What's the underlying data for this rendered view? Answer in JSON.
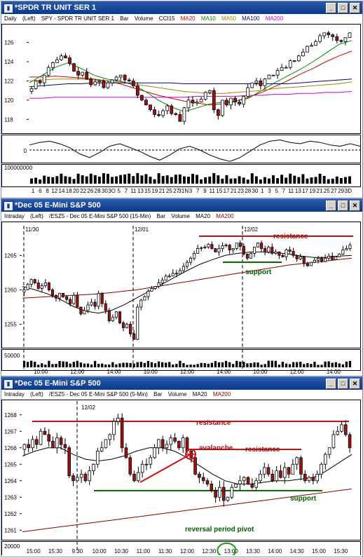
{
  "windows": [
    {
      "title": "*SPDR TR UNIT SER 1",
      "header": {
        "period": "Daily",
        "axis": "(Left)",
        "symbol": "SPY - SPDR TR UNIT SER 1",
        "type": "Bar",
        "volume": "Volume",
        "cci": "CCI15",
        "ma_labels": [
          "MA20",
          "MA10",
          "MA50",
          "MA100",
          "MA200"
        ]
      },
      "ma_colors": [
        "#cc0000",
        "#008800",
        "#a08800",
        "#000080",
        "#cc00cc"
      ],
      "y_ticks": [
        "126",
        "124",
        "122",
        "120",
        "118"
      ],
      "osc_tick": "0",
      "vol_tick": "100000000",
      "x_ticks": [
        "1",
        "6",
        "8",
        "12",
        "14",
        "18",
        "20",
        "22",
        "26",
        "28",
        "30",
        "3O",
        "5",
        "7",
        "11",
        "13",
        "15",
        "19",
        "21",
        "25",
        "27",
        "31N",
        "3",
        "7",
        "9",
        "11",
        "15",
        "17",
        "21",
        "23",
        "28",
        "30",
        "1",
        "3",
        "5",
        "7",
        "11",
        "13",
        "17",
        "19",
        "21",
        "25",
        "27",
        "29",
        "3D"
      ]
    },
    {
      "title": "*Dec 05  E-Mini S&P 500",
      "header": {
        "period": "Intraday",
        "axis": "(Left)",
        "symbol": "/ESZ5 - Dec 05  E-Mini S&P 500 (15-Min)",
        "type": "Bar",
        "volume": "Volume",
        "ma_labels": [
          "MA20",
          "MA200"
        ]
      },
      "ma_colors": [
        "#000000",
        "#880000"
      ],
      "y_ticks": [
        "1265",
        "1260",
        "1255"
      ],
      "vol_tick": "50000",
      "dates": [
        "11/30",
        "12/01",
        "12/02"
      ],
      "x_ticks": [
        "10:00",
        "12:00",
        "14:00",
        "10:00",
        "12:00",
        "14:00",
        "10:00",
        "12:00",
        "14:00"
      ],
      "annotations": {
        "resistance": "resistance",
        "support": "support"
      }
    },
    {
      "title": "*Dec 05  E-Mini S&P 500",
      "header": {
        "period": "Intraday",
        "axis": "(Left)",
        "symbol": "/ESZ5 - Dec 05  E-Mini S&P 500 (5-Min)",
        "type": "Bar",
        "volume": "Volume",
        "ma_labels": [
          "MA20",
          "MA200"
        ]
      },
      "ma_colors": [
        "#000000",
        "#880000"
      ],
      "y_ticks": [
        "1268",
        "1267",
        "1266",
        "1265",
        "1264",
        "1263",
        "1262",
        "1261"
      ],
      "vol_tick": "20000",
      "dates": [
        "12/02"
      ],
      "x_ticks": [
        "15:00",
        "15:30",
        "9:30",
        "10:00",
        "10:30",
        "11:00",
        "11:30",
        "12:00",
        "12:30",
        "13:00",
        "13:30",
        "14:00",
        "14:30",
        "15:00",
        "15:30"
      ],
      "annotations": {
        "resistance_top": "resistance",
        "avalanche": "avalanche",
        "resistance_mid": "resistance",
        "support": "support",
        "pivot": "reversal period pivot"
      }
    }
  ],
  "chart_data": [
    {
      "type": "candlestick",
      "title": "SPY - SPDR TR UNIT SER 1",
      "x_tick_labels": [
        "1",
        "6",
        "8",
        "12",
        "14",
        "18",
        "20",
        "22",
        "26",
        "28",
        "30",
        "3O",
        "5",
        "7",
        "11",
        "13",
        "15",
        "19",
        "21",
        "25",
        "27",
        "31N",
        "3",
        "7",
        "9",
        "11",
        "15",
        "17",
        "21",
        "23",
        "28",
        "30",
        "1",
        "3",
        "5",
        "7",
        "11",
        "13",
        "17",
        "19",
        "21",
        "25",
        "27",
        "29",
        "3D"
      ],
      "ylim": [
        117,
        127.5
      ],
      "closes": [
        121.2,
        122.0,
        121.8,
        122.6,
        123.4,
        123.9,
        124.2,
        124.6,
        124.4,
        123.8,
        123.0,
        122.6,
        122.9,
        122.2,
        121.6,
        121.9,
        122.0,
        121.3,
        121.8,
        122.1,
        122.4,
        122.6,
        122.1,
        122.0,
        121.5,
        120.5,
        120.0,
        119.5,
        119.0,
        118.5,
        118.4,
        118.9,
        119.4,
        118.6,
        118.5,
        117.8,
        119.2,
        120.0,
        119.7,
        119.8,
        120.1,
        120.8,
        121.0,
        119.0,
        118.4,
        120.0,
        119.5,
        120.2,
        119.8,
        119.6,
        120.4,
        121.3,
        121.8,
        122.0,
        121.5,
        122.2,
        122.6,
        122.6,
        123.1,
        123.4,
        123.4,
        124.1,
        124.1,
        124.6,
        125.0,
        125.6,
        125.7,
        126.1,
        126.7,
        127.0,
        126.8,
        126.6,
        126.2,
        126.1,
        126.5,
        127.0
      ],
      "series": [
        {
          "name": "MA20",
          "values": [
            122.4,
            122.4,
            122.5,
            122.4,
            122.3,
            122.2,
            122.0,
            121.7,
            121.3,
            120.9,
            120.5,
            120.2,
            119.9,
            119.7,
            119.5,
            119.6,
            119.9,
            120.3,
            120.8,
            121.4,
            122.0,
            122.7,
            123.3,
            124.0,
            124.6,
            125.1
          ]
        },
        {
          "name": "MA10",
          "values": [
            121.8,
            122.6,
            123.4,
            123.9,
            123.3,
            122.6,
            122.2,
            122.0,
            121.6,
            120.9,
            120.0,
            119.3,
            118.8,
            119.2,
            119.6,
            119.8,
            119.9,
            120.2,
            121.0,
            121.8,
            122.5,
            123.2,
            124.0,
            124.9,
            125.8,
            126.2
          ]
        },
        {
          "name": "MA50",
          "values": [
            122.0,
            122.1,
            122.2,
            122.2,
            122.2,
            122.1,
            122.0,
            121.9,
            121.7,
            121.5,
            121.3,
            121.1,
            120.9,
            120.8,
            120.7,
            120.7,
            120.8,
            120.9,
            121.0,
            121.2,
            121.3,
            121.4,
            121.5,
            121.6,
            121.7,
            121.9
          ]
        },
        {
          "name": "MA100",
          "values": [
            121.4,
            121.5,
            121.6,
            121.7,
            121.7,
            121.8,
            121.8,
            121.8,
            121.8,
            121.8,
            121.8,
            121.8,
            121.7,
            121.7,
            121.7,
            121.7,
            121.7,
            121.7,
            121.7,
            121.7,
            121.7,
            121.8,
            121.9,
            122.0,
            122.1,
            122.2
          ]
        },
        {
          "name": "MA200",
          "values": [
            120.2,
            120.2,
            120.3,
            120.3,
            120.3,
            120.3,
            120.3,
            120.3,
            120.3,
            120.3,
            120.3,
            120.3,
            120.3,
            120.4,
            120.4,
            120.4,
            120.4,
            120.5,
            120.5,
            120.6,
            120.6,
            120.7,
            120.7,
            120.8,
            120.8,
            120.9
          ]
        }
      ],
      "cci_tick": "0",
      "volume_tick": "100000000"
    },
    {
      "type": "candlestick",
      "title": "/ESZ5 - Dec 05  E-Mini S&P 500 (15-Min)",
      "ylim": [
        1252,
        1268.5
      ],
      "closes": [
        1260.0,
        1260.8,
        1261.5,
        1261.0,
        1260.2,
        1260.6,
        1261.0,
        1260.0,
        1259.2,
        1258.8,
        1259.5,
        1259.0,
        1258.6,
        1258.0,
        1259.2,
        1257.5,
        1256.5,
        1257.0,
        1257.8,
        1258.2,
        1257.6,
        1259.5,
        1258.0,
        1257.0,
        1255.5,
        1256.0,
        1256.8,
        1255.2,
        1254.5,
        1255.0,
        1253.6,
        1252.8,
        1257.5,
        1258.5,
        1259.0,
        1259.8,
        1260.2,
        1260.5,
        1261.0,
        1261.4,
        1262.0,
        1262.0,
        1262.4,
        1262.3,
        1262.8,
        1263.4,
        1264.0,
        1264.6,
        1265.3,
        1266.0,
        1266.1,
        1266.2,
        1266.6,
        1266.0,
        1265.5,
        1266.0,
        1266.4,
        1266.5,
        1265.8,
        1266.0,
        1266.8,
        1266.3,
        1265.2,
        1264.6,
        1265.3,
        1266.2,
        1266.8,
        1266.0,
        1265.5,
        1266.2,
        1265.3,
        1265.5,
        1265.0,
        1264.8,
        1265.8,
        1265.6,
        1265.0,
        1264.5,
        1264.8,
        1263.8,
        1263.5,
        1264.0,
        1264.3,
        1264.6,
        1264.1,
        1264.6,
        1264.9,
        1264.4,
        1264.8,
        1265.2,
        1265.8,
        1266.0,
        1266.5
      ],
      "series": [
        {
          "name": "MA20",
          "values": [
            1260.5,
            1260.0,
            1259.4,
            1258.6,
            1257.6,
            1256.9,
            1256.6,
            1257.0,
            1257.8,
            1258.8,
            1259.8,
            1260.8,
            1261.8,
            1262.8,
            1263.7,
            1264.4,
            1265.0,
            1265.3,
            1265.5,
            1265.5,
            1265.4,
            1265.2,
            1264.9,
            1264.7,
            1264.7,
            1264.9,
            1265.0
          ]
        },
        {
          "name": "MA200",
          "values": [
            1258.8,
            1258.9,
            1259.0,
            1259.1,
            1259.2,
            1259.3,
            1259.4,
            1259.6,
            1259.8,
            1260.0,
            1260.3,
            1260.6,
            1260.9,
            1261.2,
            1261.5,
            1261.8,
            1262.1,
            1262.4,
            1262.7,
            1263.0,
            1263.3,
            1263.6,
            1263.8,
            1264.0,
            1264.2,
            1264.4,
            1264.6
          ]
        }
      ],
      "levels": {
        "resistance": 1267.8,
        "support": 1264.0
      },
      "volume_tick": "50000"
    },
    {
      "type": "candlestick",
      "title": "/ESZ5 - Dec 05  E-Mini S&P 500 (5-Min)",
      "ylim": [
        1260.5,
        1268.5
      ],
      "closes": [
        1266.2,
        1266.0,
        1266.5,
        1266.2,
        1267.0,
        1266.8,
        1266.4,
        1266.0,
        1266.6,
        1266.2,
        1266.0,
        1264.3,
        1264.0,
        1264.2,
        1264.4,
        1264.0,
        1264.6,
        1265.0,
        1265.8,
        1266.0,
        1266.5,
        1266.8,
        1267.6,
        1267.8,
        1266.0,
        1265.4,
        1264.4,
        1264.0,
        1264.5,
        1265.0,
        1265.0,
        1265.4,
        1266.0,
        1266.5,
        1266.0,
        1266.2,
        1266.6,
        1266.4,
        1266.0,
        1266.6,
        1265.8,
        1265.4,
        1264.4,
        1264.2,
        1264.0,
        1263.8,
        1263.4,
        1263.0,
        1263.6,
        1262.8,
        1263.0,
        1263.6,
        1263.8,
        1264.0,
        1264.2,
        1263.8,
        1263.6,
        1264.0,
        1264.4,
        1264.8,
        1264.4,
        1264.0,
        1264.6,
        1264.2,
        1264.8,
        1264.4,
        1265.0,
        1265.4,
        1264.4,
        1264.0,
        1264.2,
        1264.0,
        1264.4,
        1265.0,
        1265.6,
        1266.0,
        1266.8,
        1267.0,
        1267.4,
        1266.8,
        1266.0
      ],
      "series": [
        {
          "name": "MA20",
          "values": [
            1265.5,
            1265.8,
            1266.0,
            1266.0,
            1265.6,
            1265.3,
            1265.2,
            1265.3,
            1265.5,
            1265.8,
            1266.0,
            1266.0,
            1265.8,
            1265.4,
            1264.9,
            1264.4,
            1264.0,
            1263.8,
            1263.8,
            1263.9,
            1264.0,
            1264.0,
            1264.1,
            1264.2,
            1264.6,
            1265.1,
            1265.6
          ]
        },
        {
          "name": "MA200",
          "values": [
            1260.9,
            1261.0,
            1261.1,
            1261.2,
            1261.3,
            1261.4,
            1261.5,
            1261.6,
            1261.7,
            1261.8,
            1261.9,
            1262.0,
            1262.1,
            1262.2,
            1262.3,
            1262.4,
            1262.5,
            1262.6,
            1262.7,
            1262.8,
            1262.9,
            1263.0,
            1263.1,
            1263.2,
            1263.3,
            1263.4,
            1263.5
          ]
        }
      ],
      "levels": {
        "resistance_top": 1267.6,
        "resistance_mid": 1265.9,
        "support": 1263.4
      },
      "volume_tick": "20000"
    }
  ]
}
